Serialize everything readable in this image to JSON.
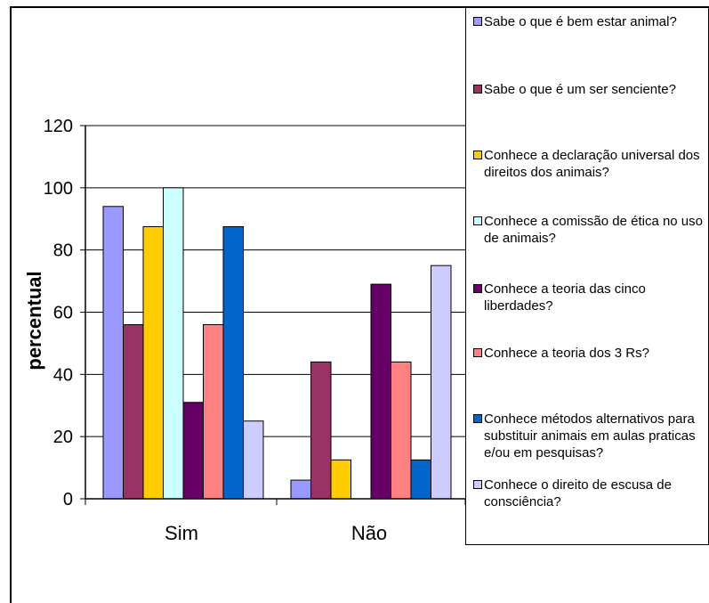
{
  "chart_data": {
    "type": "bar",
    "categories": [
      "Sim",
      "Não"
    ],
    "ylabel": "percentual",
    "xlabel": "",
    "ylim": [
      0,
      120
    ],
    "yticks": [
      0,
      20,
      40,
      60,
      80,
      100,
      120
    ],
    "grid": true,
    "legend_position": "right",
    "series": [
      {
        "name": "Sabe o que é bem estar animal?",
        "color": "#9999ff",
        "values": [
          94,
          6
        ]
      },
      {
        "name": "Sabe o que é um ser senciente?",
        "color": "#993366",
        "values": [
          56,
          44
        ]
      },
      {
        "name": "Conhece a declaração universal dos direitos dos animais?",
        "color": "#ffcc00",
        "values": [
          87.5,
          12.5
        ]
      },
      {
        "name": "Conhece a comissão de ética no uso de animais?",
        "color": "#ccffff",
        "values": [
          100,
          0
        ]
      },
      {
        "name": "Conhece a teoria das cinco liberdades?",
        "color": "#660066",
        "values": [
          31,
          69
        ]
      },
      {
        "name": "Conhece a teoria dos 3 Rs?",
        "color": "#ff8080",
        "values": [
          56,
          44
        ]
      },
      {
        "name": "Conhece métodos alternativos para substituir animais em aulas praticas e/ou em pesquisas?",
        "color": "#0066cc",
        "values": [
          87.5,
          12.5
        ]
      },
      {
        "name": "Conhece o direito de escusa de consciência?",
        "color": "#ccccff",
        "values": [
          25,
          75
        ]
      }
    ]
  }
}
